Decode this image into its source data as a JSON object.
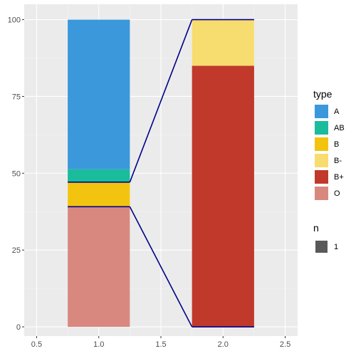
{
  "chart_data": {
    "type": "bar",
    "title": "",
    "xlabel": "",
    "ylabel": "",
    "xlim": [
      0.4,
      2.6
    ],
    "ylim": [
      -3,
      105
    ],
    "x_ticks": [
      0.5,
      1.0,
      1.5,
      2.0,
      2.5
    ],
    "x_tick_labels": [
      "0.5",
      "1.0",
      "1.5",
      "2.0",
      "2.5"
    ],
    "y_ticks": [
      0,
      25,
      50,
      75,
      100
    ],
    "y_tick_labels": [
      "0",
      "25",
      "50",
      "75",
      "100"
    ],
    "grid": true,
    "bars": [
      {
        "x": 1.0,
        "width": 0.5,
        "segments": [
          {
            "type": "O",
            "start": 0,
            "end": 39.1
          },
          {
            "type": "B",
            "start": 39.1,
            "end": 47.1
          },
          {
            "type": "AB",
            "start": 47.1,
            "end": 51.3
          },
          {
            "type": "A",
            "start": 51.3,
            "end": 100
          }
        ]
      },
      {
        "x": 2.0,
        "width": 0.5,
        "segments": [
          {
            "type": "B+",
            "start": 0,
            "end": 85.0
          },
          {
            "type": "B-",
            "start": 85.0,
            "end": 100
          }
        ]
      }
    ],
    "connectors": {
      "color": "#00008b",
      "lines": [
        {
          "from": [
            1.25,
            47.1
          ],
          "to": [
            1.75,
            100
          ]
        },
        {
          "from": [
            1.25,
            39.1
          ],
          "to": [
            1.75,
            0
          ]
        }
      ],
      "outlines": [
        {
          "x": [
            0.75,
            1.25
          ],
          "y": 47.1
        },
        {
          "x": [
            0.75,
            1.25
          ],
          "y": 39.1
        },
        {
          "x": [
            1.75,
            2.25
          ],
          "y": 100
        },
        {
          "x": [
            1.75,
            2.25
          ],
          "y": 0
        }
      ]
    },
    "legend": {
      "position": "right",
      "type_title": "type",
      "type_entries": [
        {
          "label": "A",
          "color": "#3a98db"
        },
        {
          "label": "AB",
          "color": "#1abc9c"
        },
        {
          "label": "B",
          "color": "#f2c40f"
        },
        {
          "label": "B-",
          "color": "#f7dc6f"
        },
        {
          "label": "B+",
          "color": "#c0392b"
        },
        {
          "label": "O",
          "color": "#d98880"
        }
      ],
      "n_title": "n",
      "n_entries": [
        {
          "label": "1",
          "color": "#595959"
        }
      ]
    }
  }
}
